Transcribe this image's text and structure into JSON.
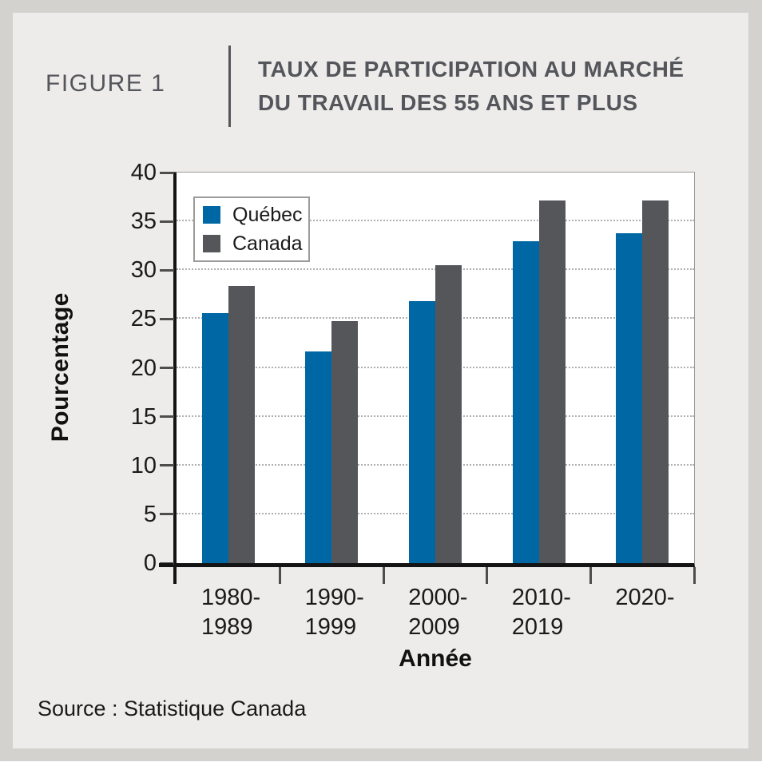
{
  "header": {
    "figure_label": "FIGURE 1",
    "title_lines": [
      "TAUX DE PARTICIPATION AU MARCHÉ",
      "DU TRAVAIL DES 55 ANS ET PLUS"
    ]
  },
  "footer": {
    "source": "Source : Statistique Canada"
  },
  "chart_data": {
    "type": "bar",
    "title": "TAUX DE PARTICIPATION AU MARCHÉ DU TRAVAIL DES 55 ANS ET PLUS",
    "categories": [
      "1980-1989",
      "1990-1999",
      "2000-2009",
      "2010-2019",
      "2020-"
    ],
    "category_display_lines": [
      [
        "1980-",
        "1989"
      ],
      [
        "1990-",
        "1999"
      ],
      [
        "2000-",
        "2009"
      ],
      [
        "2010-",
        "2019"
      ],
      [
        "2020-"
      ]
    ],
    "series": [
      {
        "name": "Québec",
        "color": "#0067A5",
        "values": [
          25.6,
          21.7,
          26.8,
          33.0,
          33.8
        ]
      },
      {
        "name": "Canada",
        "color": "#55565A",
        "values": [
          28.4,
          24.8,
          30.5,
          37.1,
          37.1
        ]
      }
    ],
    "xlabel": "Année",
    "ylabel": "Pourcentage",
    "ylim": [
      0,
      40
    ],
    "yticks": [
      0,
      5,
      10,
      15,
      20,
      25,
      30,
      35,
      40
    ],
    "gridlines_at": [
      5,
      10,
      15,
      20,
      25,
      30,
      35
    ],
    "grid": "horizontal-dotted",
    "legend_position": "top-left-inside"
  },
  "colors": {
    "bar_quebec": "#0067A5",
    "bar_canada": "#55565A",
    "heading_text": "#54565B",
    "axis_text": "#1A1A1A",
    "frame_background": "#D3D2CF",
    "card_background": "#EDECEA",
    "plot_background": "#FFFFFF",
    "gridline": "#B0B0B0"
  }
}
